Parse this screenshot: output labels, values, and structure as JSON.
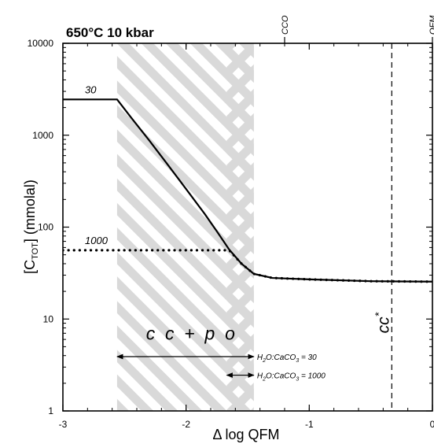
{
  "chart_data": {
    "type": "line",
    "title": "650°C  10 kbar",
    "xlabel": "Δ log QFM",
    "ylabel": "[C",
    "ylabel_sub": "TOT",
    "ylabel_rest": "] (mmolal)",
    "xlim": [
      -3,
      0
    ],
    "ylim": [
      1,
      10000
    ],
    "y_scale": "log",
    "x_ticks": [
      -3,
      -2,
      -1,
      0
    ],
    "x_tick_labels": [
      "-3",
      "-2",
      "-1",
      "0"
    ],
    "y_ticks": [
      1,
      10,
      100,
      1000,
      10000
    ],
    "y_tick_labels": [
      "1",
      "10",
      "100",
      "1000",
      "10000"
    ],
    "grid": false,
    "top_markers": [
      {
        "label": "CCO",
        "x": -1.2
      },
      {
        "label": "QFM",
        "x": 0
      }
    ],
    "series": [
      {
        "name": "30",
        "style": "solid",
        "x": [
          -3.0,
          -2.56,
          -2.45,
          -2.3,
          -2.15,
          -2.0,
          -1.85,
          -1.75,
          -1.65,
          -1.55,
          -1.45,
          -1.3,
          -1.0,
          -0.5,
          0.0
        ],
        "y": [
          2450,
          2450,
          1580,
          880,
          480,
          260,
          140,
          90,
          57,
          40,
          31,
          28,
          27,
          25.8,
          25.5
        ]
      },
      {
        "name": "1000",
        "style": "dotted",
        "x": [
          -3.0,
          -2.8,
          -2.6,
          -2.4,
          -2.2,
          -2.0,
          -1.8,
          -1.65,
          -1.55,
          -1.45,
          -1.3,
          -1.0,
          -0.5,
          0.0
        ],
        "y": [
          56,
          56,
          56,
          56,
          56,
          56,
          56,
          56,
          40,
          31,
          28,
          27,
          25.8,
          25.5
        ]
      }
    ],
    "shaded_regions": [
      {
        "x": [
          -2.56,
          -1.45
        ],
        "pattern": "diagonal-hatch"
      },
      {
        "x": [
          -1.67,
          -1.45
        ],
        "pattern": "cross-hatch"
      }
    ],
    "annotations": {
      "phase_label": "c  c  +  p  o",
      "phase_label_x": -1.9,
      "phase_label_y": 7,
      "cc_label": "cc",
      "cc_superscript": "*",
      "cc_line_x": -0.33,
      "ratio_30": {
        "start": -2.56,
        "end": -1.45,
        "y": 3.9,
        "text_prefix": "H",
        "text_sub1": "2",
        "text_mid": "O:CaCO",
        "text_sub2": "3",
        "text_suffix": " = 30"
      },
      "ratio_1000": {
        "start": -1.67,
        "end": -1.45,
        "y": 2.45,
        "text_prefix": "H",
        "text_sub1": "2",
        "text_mid": "O:CaCO",
        "text_sub2": "3",
        "text_suffix": " = 1000"
      }
    }
  }
}
